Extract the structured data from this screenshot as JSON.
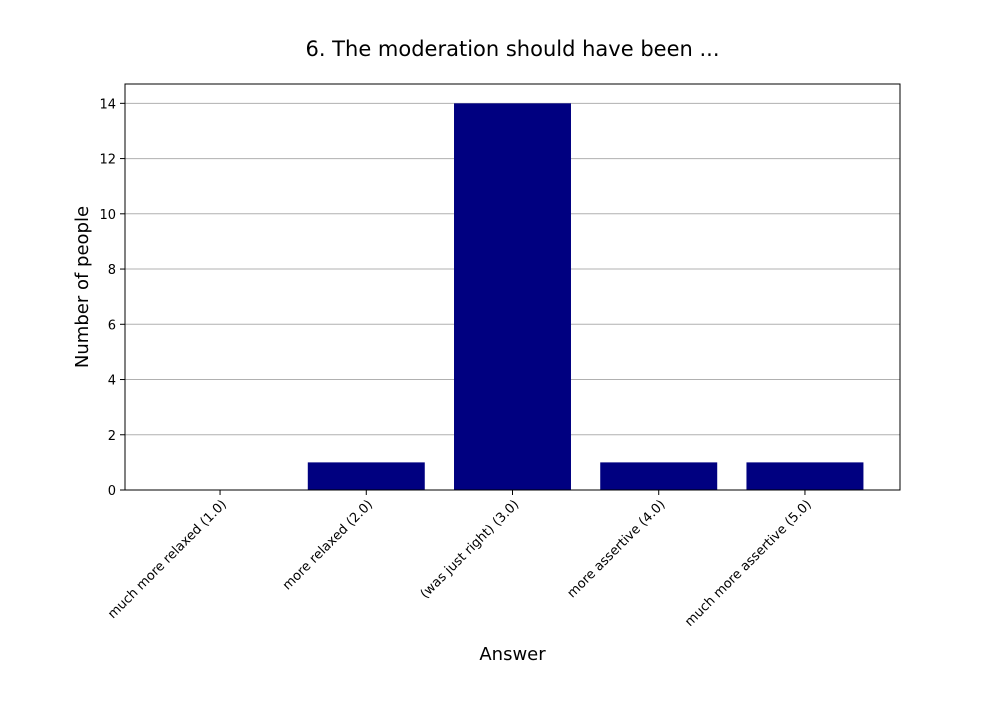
{
  "chart_data": {
    "type": "bar",
    "title": "6. The moderation should have been ...",
    "xlabel": "Answer",
    "ylabel": "Number of people",
    "categories": [
      "much more relaxed (1.0)",
      "more relaxed (2.0)",
      "(was just right) (3.0)",
      "more assertive (4.0)",
      "much more assertive (5.0)"
    ],
    "values": [
      0,
      1,
      14,
      1,
      1
    ],
    "ylim": [
      0,
      14.7
    ],
    "yticks": [
      0,
      2,
      4,
      6,
      8,
      10,
      12,
      14
    ],
    "grid": "horizontal",
    "bar_color": "#000080",
    "legend": "none"
  }
}
